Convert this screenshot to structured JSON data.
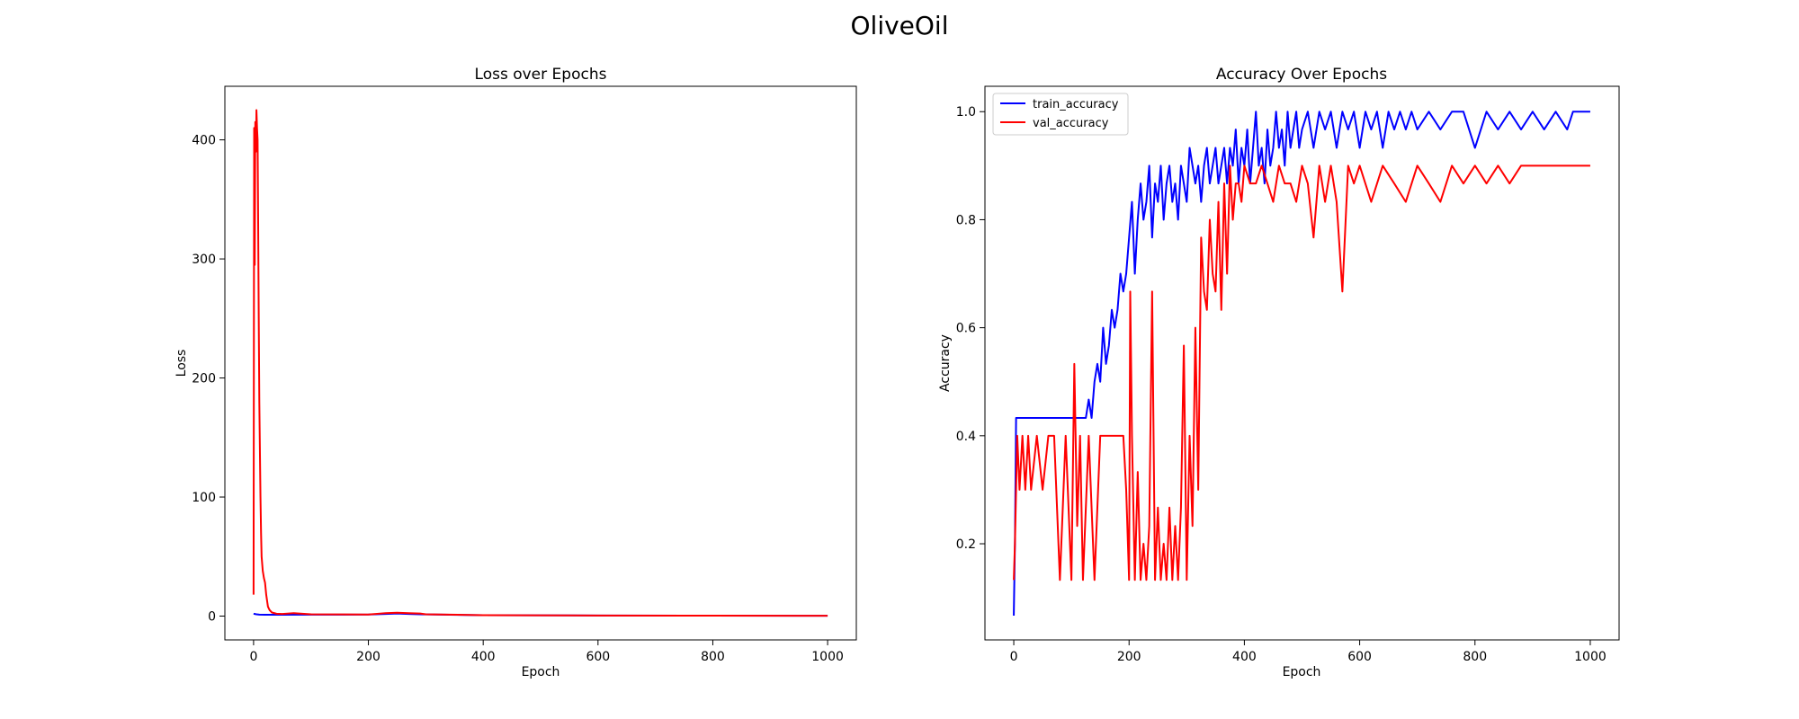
{
  "figure": {
    "title": "OliveOil"
  },
  "chart_data": [
    {
      "type": "line",
      "title": "Loss over Epochs",
      "xlabel": "Epoch",
      "ylabel": "Loss",
      "xlim": [
        -50,
        1050
      ],
      "ylim": [
        -20,
        445
      ],
      "xticks": [
        0,
        200,
        400,
        600,
        800,
        1000
      ],
      "yticks": [
        0,
        100,
        200,
        300,
        400
      ],
      "legend": null,
      "grid": false,
      "series": [
        {
          "color": "#0000ff",
          "x": [
            0,
            5,
            10,
            20,
            50,
            100,
            150,
            200,
            230,
            250,
            270,
            290,
            300,
            400,
            600,
            800,
            1000
          ],
          "y": [
            2,
            1.5,
            1.2,
            1.1,
            1.1,
            1.2,
            1.2,
            1.3,
            1.8,
            2.2,
            1.8,
            1.5,
            1.4,
            0.8,
            0.5,
            0.4,
            0.3
          ]
        },
        {
          "color": "#ff0000",
          "x": [
            0,
            1,
            2,
            3,
            4,
            5,
            6,
            7,
            8,
            9,
            10,
            11,
            12,
            13,
            14,
            16,
            18,
            20,
            22,
            25,
            28,
            32,
            40,
            50,
            70,
            100,
            200,
            230,
            250,
            270,
            290,
            300,
            400,
            600,
            800,
            1000
          ],
          "y": [
            18,
            410,
            295,
            415,
            390,
            425,
            410,
            400,
            330,
            250,
            180,
            140,
            100,
            70,
            50,
            38,
            32,
            28,
            18,
            8,
            5,
            3,
            2,
            1.8,
            2.5,
            1.5,
            1.3,
            2.5,
            2.8,
            2.5,
            2.2,
            1.5,
            0.8,
            0.5,
            0.4,
            0.3
          ]
        }
      ]
    },
    {
      "type": "line",
      "title": "Accuracy Over Epochs",
      "xlabel": "Epoch",
      "ylabel": "Accuracy",
      "xlim": [
        -50,
        1050
      ],
      "ylim": [
        0.022,
        1.047
      ],
      "xticks": [
        0,
        200,
        400,
        600,
        800,
        1000
      ],
      "yticks": [
        0.2,
        0.4,
        0.6,
        0.8,
        1.0
      ],
      "ytick_labels": [
        "0.2",
        "0.4",
        "0.6",
        "0.8",
        "1.0"
      ],
      "grid": false,
      "legend": {
        "position": "upper-left"
      },
      "series": [
        {
          "name": "train_accuracy",
          "color": "#0000ff",
          "x": [
            0,
            2,
            4,
            6,
            10,
            20,
            40,
            60,
            80,
            100,
            120,
            125,
            130,
            135,
            140,
            145,
            150,
            155,
            160,
            165,
            170,
            175,
            180,
            185,
            190,
            195,
            200,
            205,
            210,
            215,
            220,
            225,
            230,
            235,
            240,
            245,
            250,
            255,
            260,
            265,
            270,
            275,
            280,
            285,
            290,
            295,
            300,
            305,
            310,
            315,
            320,
            325,
            330,
            335,
            340,
            345,
            350,
            355,
            360,
            365,
            370,
            375,
            380,
            385,
            390,
            395,
            400,
            405,
            410,
            415,
            420,
            425,
            430,
            435,
            440,
            445,
            450,
            455,
            460,
            465,
            470,
            475,
            480,
            485,
            490,
            495,
            500,
            510,
            520,
            530,
            540,
            550,
            560,
            570,
            580,
            590,
            600,
            610,
            620,
            630,
            640,
            650,
            660,
            670,
            680,
            690,
            700,
            720,
            740,
            760,
            780,
            800,
            820,
            840,
            860,
            880,
            900,
            920,
            940,
            960,
            970,
            980,
            1000
          ],
          "y": [
            0.067,
            0.2,
            0.433,
            0.433,
            0.433,
            0.433,
            0.433,
            0.433,
            0.433,
            0.433,
            0.433,
            0.433,
            0.467,
            0.433,
            0.5,
            0.533,
            0.5,
            0.6,
            0.533,
            0.567,
            0.633,
            0.6,
            0.633,
            0.7,
            0.667,
            0.7,
            0.767,
            0.833,
            0.7,
            0.8,
            0.867,
            0.8,
            0.833,
            0.9,
            0.767,
            0.867,
            0.833,
            0.9,
            0.8,
            0.867,
            0.9,
            0.833,
            0.867,
            0.8,
            0.9,
            0.867,
            0.833,
            0.933,
            0.9,
            0.867,
            0.9,
            0.833,
            0.9,
            0.933,
            0.867,
            0.9,
            0.933,
            0.867,
            0.9,
            0.933,
            0.867,
            0.933,
            0.9,
            0.967,
            0.867,
            0.933,
            0.9,
            0.967,
            0.867,
            0.933,
            1.0,
            0.9,
            0.933,
            0.867,
            0.967,
            0.9,
            0.933,
            1.0,
            0.933,
            0.967,
            0.9,
            1.0,
            0.933,
            0.967,
            1.0,
            0.933,
            0.967,
            1.0,
            0.933,
            1.0,
            0.967,
            1.0,
            0.933,
            1.0,
            0.967,
            1.0,
            0.933,
            1.0,
            0.967,
            1.0,
            0.933,
            1.0,
            0.967,
            1.0,
            0.967,
            1.0,
            0.967,
            1.0,
            0.967,
            1.0,
            1.0,
            0.933,
            1.0,
            0.967,
            1.0,
            0.967,
            1.0,
            0.967,
            1.0,
            0.967,
            1.0,
            1.0,
            1.0
          ]
        },
        {
          "name": "val_accuracy",
          "color": "#ff0000",
          "x": [
            0,
            2,
            4,
            6,
            10,
            15,
            20,
            25,
            30,
            40,
            50,
            60,
            70,
            80,
            90,
            100,
            105,
            110,
            115,
            120,
            130,
            140,
            150,
            160,
            170,
            180,
            190,
            195,
            200,
            202,
            205,
            210,
            215,
            220,
            225,
            230,
            235,
            240,
            245,
            250,
            255,
            260,
            265,
            270,
            275,
            280,
            285,
            290,
            295,
            300,
            305,
            310,
            315,
            320,
            325,
            330,
            335,
            340,
            345,
            350,
            355,
            360,
            365,
            370,
            375,
            380,
            385,
            390,
            395,
            400,
            410,
            420,
            430,
            440,
            450,
            460,
            470,
            480,
            490,
            500,
            510,
            520,
            530,
            540,
            550,
            560,
            570,
            580,
            590,
            600,
            620,
            640,
            660,
            680,
            700,
            720,
            740,
            760,
            780,
            800,
            820,
            840,
            860,
            880,
            900,
            920,
            940,
            960,
            980,
            1000
          ],
          "y": [
            0.133,
            0.2,
            0.3,
            0.4,
            0.3,
            0.4,
            0.3,
            0.4,
            0.3,
            0.4,
            0.3,
            0.4,
            0.4,
            0.133,
            0.4,
            0.133,
            0.533,
            0.233,
            0.4,
            0.133,
            0.4,
            0.133,
            0.4,
            0.4,
            0.4,
            0.4,
            0.4,
            0.3,
            0.133,
            0.667,
            0.4,
            0.133,
            0.333,
            0.133,
            0.2,
            0.133,
            0.233,
            0.667,
            0.133,
            0.267,
            0.133,
            0.2,
            0.133,
            0.267,
            0.133,
            0.233,
            0.133,
            0.267,
            0.567,
            0.133,
            0.4,
            0.233,
            0.6,
            0.3,
            0.767,
            0.667,
            0.633,
            0.8,
            0.7,
            0.667,
            0.833,
            0.633,
            0.867,
            0.7,
            0.9,
            0.8,
            0.867,
            0.867,
            0.833,
            0.9,
            0.867,
            0.867,
            0.9,
            0.867,
            0.833,
            0.9,
            0.867,
            0.867,
            0.833,
            0.9,
            0.867,
            0.767,
            0.9,
            0.833,
            0.9,
            0.833,
            0.667,
            0.9,
            0.867,
            0.9,
            0.833,
            0.9,
            0.867,
            0.833,
            0.9,
            0.867,
            0.833,
            0.9,
            0.867,
            0.9,
            0.867,
            0.9,
            0.867,
            0.9,
            0.9,
            0.9,
            0.9,
            0.9,
            0.9,
            0.9
          ]
        }
      ]
    }
  ]
}
